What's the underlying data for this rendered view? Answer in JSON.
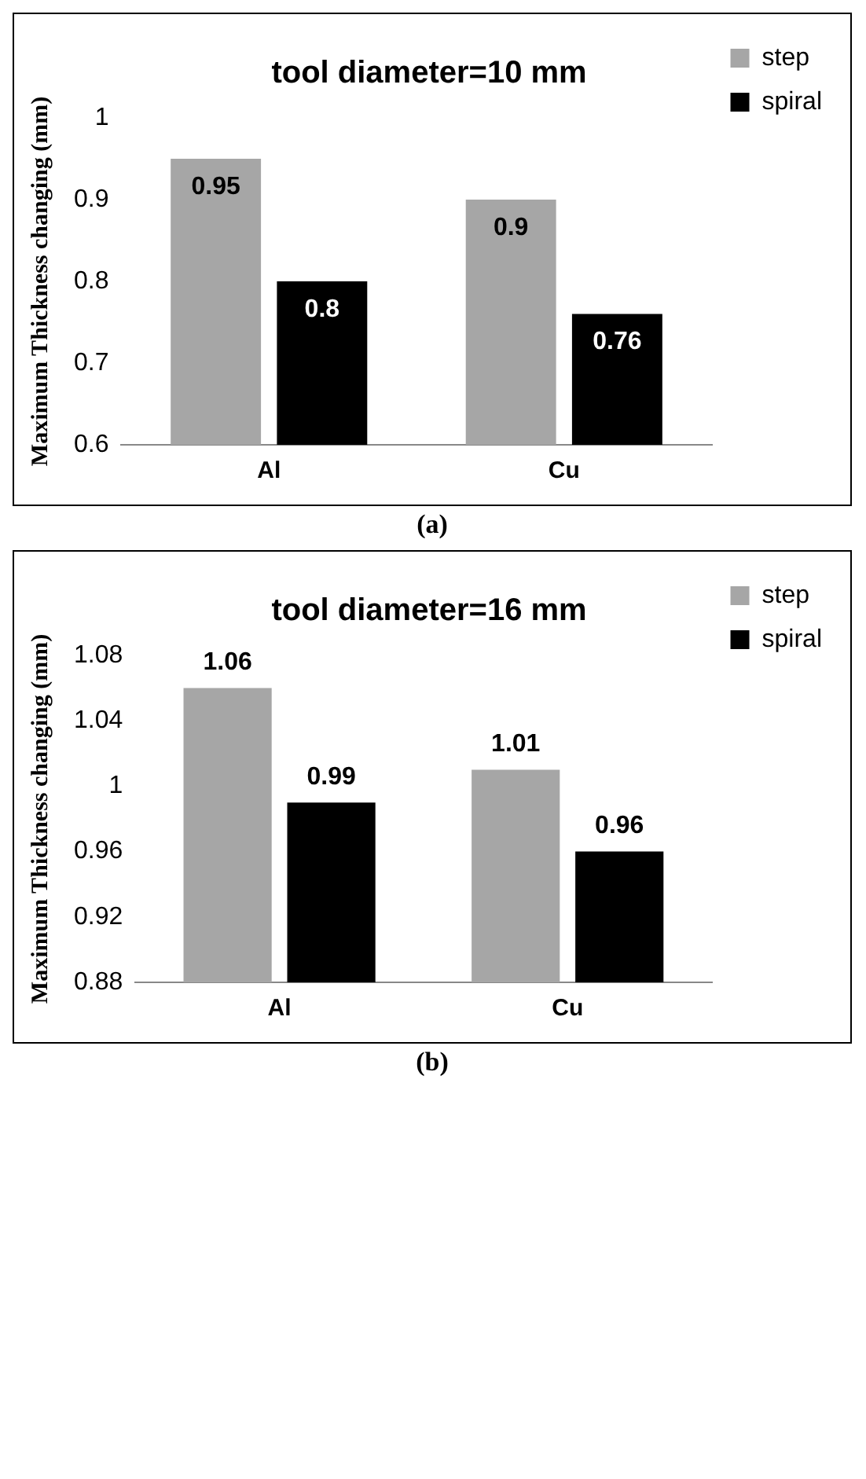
{
  "chart_data": [
    {
      "type": "bar",
      "title": "tool diameter=10 mm",
      "ylabel": "Maximum Thickness changing (mm)",
      "categories": [
        "Al",
        "Cu"
      ],
      "series": [
        {
          "name": "step",
          "color": "#a6a6a6",
          "values": [
            0.95,
            0.9
          ]
        },
        {
          "name": "spiral",
          "color": "#000000",
          "values": [
            0.8,
            0.76
          ]
        }
      ],
      "ylim": [
        0.6,
        1
      ],
      "yticks": [
        0.6,
        0.7,
        0.8,
        0.9,
        1
      ],
      "grid": false,
      "legend": "top right",
      "data_labels": true,
      "annotations": [
        "(a)"
      ]
    },
    {
      "type": "bar",
      "title": "tool diameter=16 mm",
      "ylabel": "Maximum Thickness changing (mm)",
      "categories": [
        "Al",
        "Cu"
      ],
      "series": [
        {
          "name": "step",
          "color": "#a6a6a6",
          "values": [
            1.06,
            1.01
          ]
        },
        {
          "name": "spiral",
          "color": "#000000",
          "values": [
            0.99,
            0.96
          ]
        }
      ],
      "ylim": [
        0.88,
        1.08
      ],
      "yticks": [
        0.88,
        0.92,
        0.96,
        1,
        1.04,
        1.08
      ],
      "grid": false,
      "legend": "top right",
      "data_labels": true,
      "annotations": [
        "(b)"
      ]
    }
  ]
}
